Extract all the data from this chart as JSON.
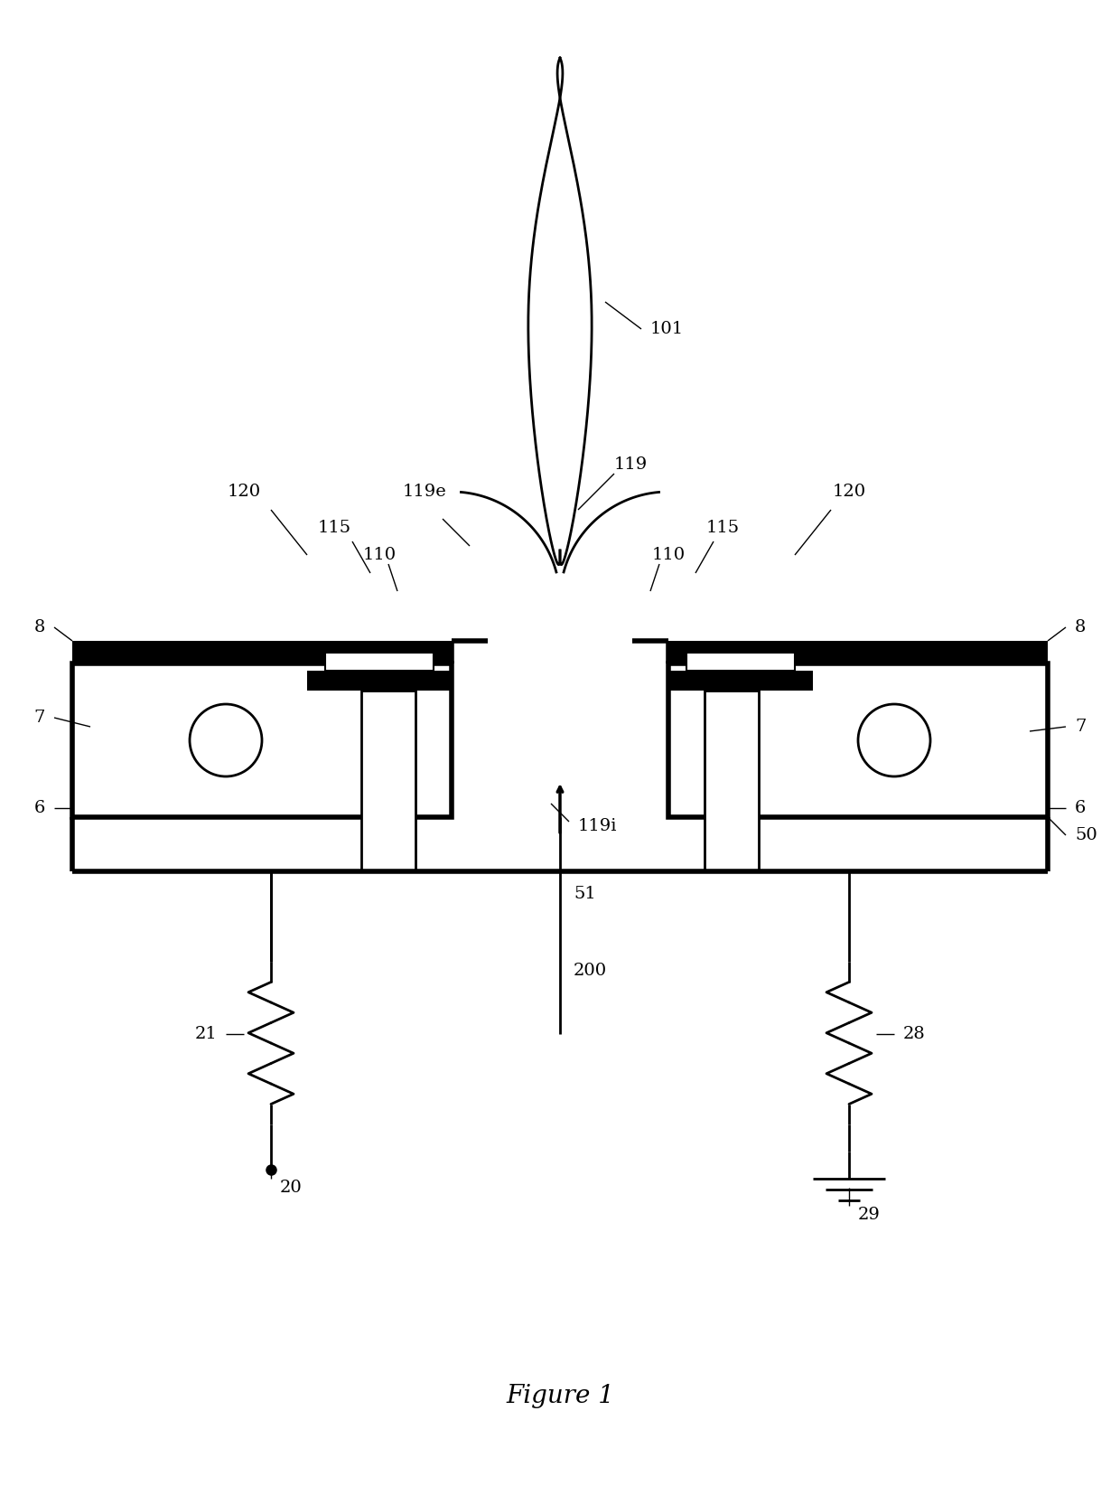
{
  "fig_width": 12.4,
  "fig_height": 16.44,
  "title": "Figure 1",
  "bg_color": "#ffffff",
  "line_color": "#000000",
  "lw": 2.0,
  "lw_thick": 4.0
}
